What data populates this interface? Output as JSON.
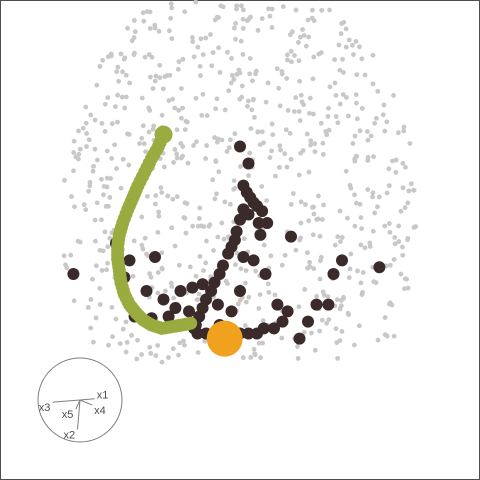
{
  "chart_data": {
    "type": "scatter",
    "title": "",
    "grid": false,
    "xlim": [
      -1,
      1
    ],
    "ylim": [
      -1,
      1
    ],
    "colors": {
      "background_points": "#c8c8c8",
      "highlight_points": "#3b2a2a",
      "path": "#9aab3f",
      "current_point": "#f0a21e",
      "axes_guide": "#7f7f7f",
      "frame": "#4d4d4d"
    },
    "background_seed": 20240611,
    "background_count": 900,
    "highlight_points": [
      [
        0.05,
        0.45
      ],
      [
        0.02,
        0.32
      ],
      [
        0.04,
        0.28
      ],
      [
        0.06,
        0.25
      ],
      [
        0.08,
        0.22
      ],
      [
        0.1,
        0.2
      ],
      [
        0.13,
        0.17
      ],
      [
        0.16,
        0.1
      ],
      [
        0.11,
        0.1
      ],
      [
        0.05,
        0.15
      ],
      [
        0.02,
        0.18
      ],
      [
        0.0,
        0.12
      ],
      [
        -0.02,
        0.05
      ],
      [
        -0.03,
        0.0
      ],
      [
        -0.05,
        -0.04
      ],
      [
        -0.07,
        -0.08
      ],
      [
        -0.1,
        -0.15
      ],
      [
        -0.12,
        -0.2
      ],
      [
        -0.15,
        -0.25
      ],
      [
        -0.17,
        -0.3
      ],
      [
        -0.2,
        -0.35
      ],
      [
        -0.22,
        -0.4
      ],
      [
        -0.24,
        -0.45
      ],
      [
        -0.26,
        -0.5
      ],
      [
        -0.27,
        -0.52
      ],
      [
        -0.25,
        -0.55
      ],
      [
        -0.2,
        -0.55
      ],
      [
        -0.15,
        -0.55
      ],
      [
        -0.1,
        -0.55
      ],
      [
        -0.05,
        -0.55
      ],
      [
        0.0,
        -0.55
      ],
      [
        0.05,
        -0.55
      ],
      [
        0.1,
        -0.55
      ],
      [
        0.14,
        -0.52
      ],
      [
        0.2,
        -0.52
      ],
      [
        -0.35,
        -0.3
      ],
      [
        -0.5,
        -0.1
      ],
      [
        -0.65,
        -0.12
      ],
      [
        -0.68,
        -0.22
      ],
      [
        -0.45,
        -0.35
      ],
      [
        -0.55,
        -0.3
      ],
      [
        -0.62,
        -0.45
      ],
      [
        -0.52,
        -0.46
      ],
      [
        -0.42,
        -0.45
      ],
      [
        -0.38,
        -0.4
      ],
      [
        -0.3,
        -0.42
      ],
      [
        -0.28,
        -0.28
      ],
      [
        -0.22,
        -0.26
      ],
      [
        -0.13,
        -0.38
      ],
      [
        -0.12,
        -0.5
      ],
      [
        -0.05,
        -0.42
      ],
      [
        0.0,
        -0.3
      ],
      [
        0.02,
        -0.1
      ],
      [
        0.08,
        -0.12
      ],
      [
        0.15,
        -0.2
      ],
      [
        0.22,
        -0.38
      ],
      [
        0.25,
        -0.48
      ],
      [
        0.28,
        -0.42
      ],
      [
        0.35,
        -0.58
      ],
      [
        0.4,
        -0.48
      ],
      [
        0.45,
        -0.38
      ],
      [
        0.52,
        -0.38
      ],
      [
        0.55,
        -0.2
      ],
      [
        0.6,
        -0.12
      ],
      [
        0.82,
        -0.16
      ],
      [
        -0.73,
        -0.02
      ],
      [
        -0.98,
        -0.2
      ],
      [
        0.0,
        0.55
      ],
      [
        0.3,
        0.02
      ],
      [
        0.12,
        0.03
      ]
    ],
    "path_points": [
      [
        -0.45,
        0.62
      ],
      [
        -0.48,
        0.55
      ],
      [
        -0.52,
        0.48
      ],
      [
        -0.56,
        0.4
      ],
      [
        -0.6,
        0.32
      ],
      [
        -0.63,
        0.25
      ],
      [
        -0.66,
        0.18
      ],
      [
        -0.69,
        0.1
      ],
      [
        -0.71,
        0.03
      ],
      [
        -0.72,
        -0.04
      ],
      [
        -0.72,
        -0.11
      ],
      [
        -0.71,
        -0.18
      ],
      [
        -0.7,
        -0.25
      ],
      [
        -0.68,
        -0.32
      ],
      [
        -0.65,
        -0.38
      ],
      [
        -0.61,
        -0.43
      ],
      [
        -0.57,
        -0.47
      ],
      [
        -0.52,
        -0.5
      ],
      [
        -0.46,
        -0.52
      ],
      [
        -0.4,
        -0.51
      ],
      [
        -0.34,
        -0.5
      ],
      [
        -0.29,
        -0.49
      ]
    ],
    "current_point": [
      -0.09,
      -0.58
    ],
    "axes_guide": [
      {
        "label": "x1",
        "dx": 0.35,
        "dy": 0.03
      },
      {
        "label": "x2",
        "dx": -0.06,
        "dy": -0.7
      },
      {
        "label": "x3",
        "dx": -0.65,
        "dy": -0.05
      },
      {
        "label": "x4",
        "dx": 0.29,
        "dy": -0.12
      },
      {
        "label": "x5",
        "dx": -0.1,
        "dy": -0.22
      }
    ]
  }
}
